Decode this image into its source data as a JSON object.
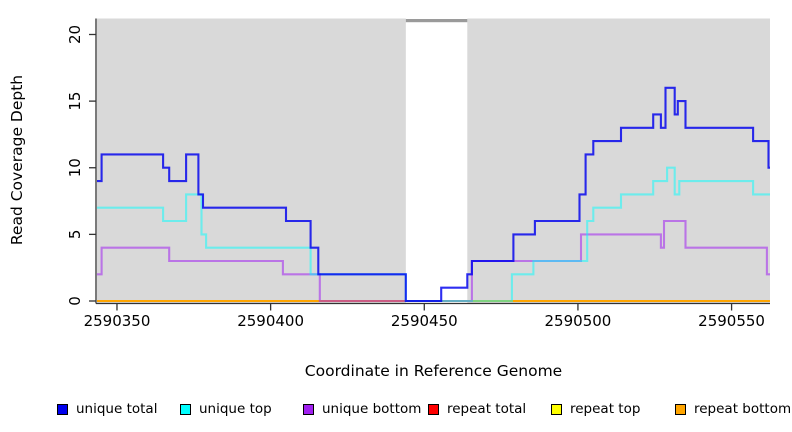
{
  "chart_data": {
    "type": "line",
    "subtype": "step-coverage",
    "title": "",
    "xlabel": "Coordinate in Reference Genome",
    "ylabel": "Read Coverage Depth",
    "xlim": [
      2590343.5,
      2590562.5
    ],
    "ylim": [
      0,
      21.2
    ],
    "x_ticks": [
      2590350,
      2590400,
      2590450,
      2590500,
      2590550
    ],
    "y_ticks": [
      0,
      5,
      10,
      15,
      20
    ],
    "grid": false,
    "plot_background_color": "#ffffff",
    "shaded_region_color": "#d9d9d9",
    "shaded_regions": [
      [
        2590343.5,
        2590444
      ],
      [
        2590464,
        2590562.5
      ]
    ],
    "gap_region": [
      2590444,
      2590464
    ],
    "gap_top_bar_color": "#9a9a9a",
    "axis_color": "#333333",
    "x_end": 2590562.5,
    "series": [
      {
        "name": "repeat total",
        "color": "#ff0000",
        "opacity": 1,
        "points": [
          [
            2590343.5,
            0
          ]
        ]
      },
      {
        "name": "repeat top",
        "color": "#ffff00",
        "opacity": 1,
        "points": [
          [
            2590343.5,
            0
          ]
        ]
      },
      {
        "name": "repeat bottom",
        "color": "#ffa500",
        "opacity": 1,
        "points": [
          [
            2590343.5,
            0
          ]
        ]
      },
      {
        "name": "unique bottom",
        "color": "#a020f0",
        "opacity": 0.55,
        "points": [
          [
            2590343.5,
            2
          ],
          [
            2590345,
            4
          ],
          [
            2590367,
            3
          ],
          [
            2590404,
            2
          ],
          [
            2590416,
            0
          ],
          [
            2590465.5,
            3
          ],
          [
            2590501,
            5
          ],
          [
            2590527,
            4
          ],
          [
            2590528,
            6
          ],
          [
            2590535,
            4
          ],
          [
            2590561.5,
            2
          ]
        ]
      },
      {
        "name": "unique top",
        "color": "#00ffff",
        "opacity": 0.5,
        "points": [
          [
            2590343.5,
            7
          ],
          [
            2590365,
            6
          ],
          [
            2590372.5,
            8
          ],
          [
            2590377.5,
            5
          ],
          [
            2590379,
            4
          ],
          [
            2590413,
            2
          ],
          [
            2590444,
            0
          ],
          [
            2590478.5,
            2
          ],
          [
            2590485.5,
            3
          ],
          [
            2590503,
            6
          ],
          [
            2590505,
            7
          ],
          [
            2590514,
            8
          ],
          [
            2590524.5,
            9
          ],
          [
            2590529,
            10
          ],
          [
            2590531.5,
            8
          ],
          [
            2590533,
            9
          ],
          [
            2590557,
            8
          ]
        ]
      },
      {
        "name": "unique total",
        "color": "#0000ee",
        "opacity": 0.82,
        "points": [
          [
            2590343.5,
            9
          ],
          [
            2590345,
            11
          ],
          [
            2590365,
            10
          ],
          [
            2590367,
            9
          ],
          [
            2590372.5,
            11
          ],
          [
            2590376.5,
            8
          ],
          [
            2590378,
            7
          ],
          [
            2590405,
            6
          ],
          [
            2590413,
            4
          ],
          [
            2590415.5,
            2
          ],
          [
            2590444,
            0
          ],
          [
            2590455.5,
            1
          ],
          [
            2590464,
            2
          ],
          [
            2590465.5,
            3
          ],
          [
            2590479,
            5
          ],
          [
            2590486,
            6
          ],
          [
            2590500.5,
            8
          ],
          [
            2590502.5,
            11
          ],
          [
            2590505,
            12
          ],
          [
            2590514,
            13
          ],
          [
            2590524.5,
            14
          ],
          [
            2590527,
            13
          ],
          [
            2590528.5,
            16
          ],
          [
            2590531.5,
            14
          ],
          [
            2590532.5,
            15
          ],
          [
            2590535,
            13
          ],
          [
            2590557,
            12
          ],
          [
            2590562,
            10
          ]
        ]
      }
    ],
    "legend": [
      {
        "label": "unique total",
        "color": "#0000ee"
      },
      {
        "label": "unique top",
        "color": "#00ffff"
      },
      {
        "label": "unique bottom",
        "color": "#a020f0"
      },
      {
        "label": "repeat total",
        "color": "#ff0000"
      },
      {
        "label": "repeat top",
        "color": "#ffff00"
      },
      {
        "label": "repeat bottom",
        "color": "#ffa500"
      }
    ]
  }
}
